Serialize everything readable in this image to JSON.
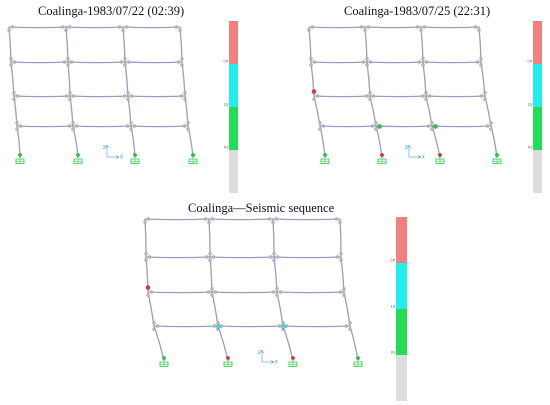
{
  "panels": [
    {
      "title": "Coalinga-1983/07/22 (02:39)",
      "plastic_hinges": []
    },
    {
      "title": "Coalinga-1983/07/25 (22:31)",
      "plastic_hinges": [
        {
          "location": "column-0-floor-2",
          "level": "LS-CP"
        },
        {
          "location": "beam-floor-1-bay-1-right",
          "level": "IO-LS"
        },
        {
          "location": "beam-floor-1-bay-2-right",
          "level": "IO-LS"
        },
        {
          "location": "base-col-1",
          "level": "LS-CP"
        },
        {
          "location": "base-col-2",
          "level": "LS-CP"
        }
      ]
    },
    {
      "title": "Coalinga—Seismic sequence",
      "plastic_hinges": [
        {
          "location": "column-0-floor-2",
          "level": "LS-CP"
        },
        {
          "location": "beam-floor-1-bay-1-left",
          "level": "IO-LS"
        },
        {
          "location": "beam-floor-1-bay-2-left",
          "level": "IO-LS"
        },
        {
          "location": "base-col-1",
          "level": "LS-CP"
        },
        {
          "location": "base-col-2",
          "level": "LS-CP"
        }
      ]
    }
  ],
  "legend": {
    "levels": [
      {
        "label": "CP",
        "color": "#f28080"
      },
      {
        "label": "LS",
        "color": "#22eef0"
      },
      {
        "label": "IO",
        "color": "#22dd55"
      },
      {
        "label": "",
        "color": "#dddddd"
      }
    ]
  },
  "axes": {
    "vertical": "Z",
    "horizontal": "X"
  },
  "colors": {
    "frame": "#9b9bc4",
    "hinge": "#b8b8b8",
    "support": "#22cc44",
    "cp_hinge": "#e0303a",
    "ls_hinge": "#22eef0",
    "io_hinge": "#22cc44"
  }
}
